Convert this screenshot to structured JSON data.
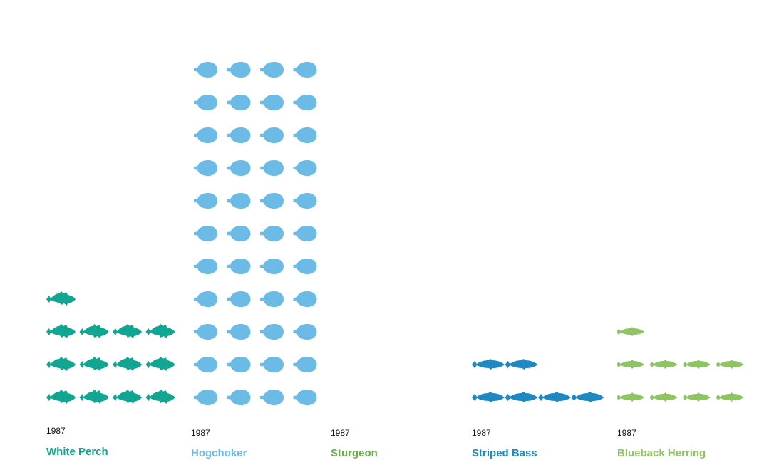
{
  "chart_data": {
    "type": "pictograph",
    "year": "1987",
    "per_row": 4,
    "series": [
      {
        "name": "White Perch",
        "year": "1987",
        "count": 13,
        "color": "#12a591",
        "icon": "perch-fish-icon"
      },
      {
        "name": "Hogchoker",
        "year": "1987",
        "count": 44,
        "color": "#6bbbe6",
        "icon": "hogchoker-flatfish-icon"
      },
      {
        "name": "Sturgeon",
        "year": "1987",
        "count": 0,
        "color": "#6aae4b",
        "icon": "sturgeon-icon"
      },
      {
        "name": "Striped Bass",
        "year": "1987",
        "count": 6,
        "color": "#1f87c2",
        "icon": "striped-bass-icon"
      },
      {
        "name": "Blueback Herring",
        "year": "1987",
        "count": 9,
        "color": "#8fc462",
        "icon": "herring-icon"
      }
    ]
  }
}
